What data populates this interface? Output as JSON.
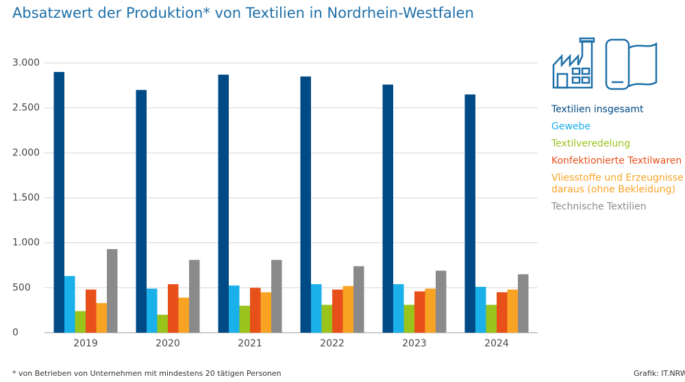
{
  "chart_data": {
    "type": "bar",
    "title": "Absatzwert der Produktion* von Textilien in Nordrhein-Westfalen",
    "categories": [
      "2019",
      "2020",
      "2021",
      "2022",
      "2023",
      "2024"
    ],
    "series": [
      {
        "name": "Textilien insgesamt",
        "color": "#004a85",
        "values": [
          2900,
          2700,
          2870,
          2850,
          2760,
          2650
        ]
      },
      {
        "name": "Gewebe",
        "color": "#1ab0ea",
        "values": [
          630,
          490,
          525,
          540,
          540,
          510
        ]
      },
      {
        "name": "Textilveredelung",
        "color": "#9ac31c",
        "values": [
          240,
          200,
          300,
          310,
          310,
          310
        ]
      },
      {
        "name": "Konfektionierte Textilwaren",
        "color": "#e8501a",
        "values": [
          480,
          540,
          500,
          480,
          460,
          450
        ]
      },
      {
        "name": "Vliesstoffe und Erzeugnisse daraus (ohne Bekleidung)",
        "color": "#f9a325",
        "values": [
          330,
          390,
          450,
          520,
          490,
          480
        ]
      },
      {
        "name": "Technische Textilien",
        "color": "#8a8a8a",
        "values": [
          930,
          810,
          810,
          740,
          690,
          650
        ]
      }
    ],
    "ylim": [
      0,
      3000
    ],
    "yticks": [
      0,
      {
        "value": 500,
        "label": "500"
      },
      {
        "value": 1000,
        "label": "1.000"
      },
      {
        "value": 1500,
        "label": "1.500"
      },
      {
        "value": 2000,
        "label": "2.000"
      },
      {
        "value": 2500,
        "label": "2.500"
      },
      {
        "value": 3000,
        "label": "3.000"
      }
    ],
    "grid": true,
    "footnote": "*  von Betrieben von Unternehmen mit mindestens 20 tätigen Personen",
    "source": "Grafik: IT.NRW"
  }
}
